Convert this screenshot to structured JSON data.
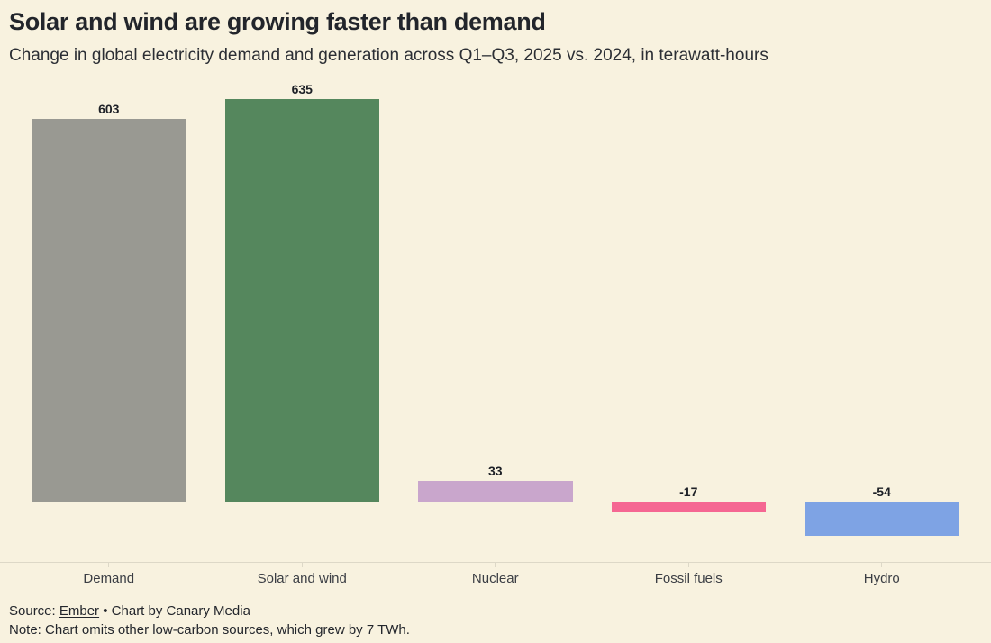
{
  "header": {
    "title": "Solar and wind are growing faster than demand",
    "subtitle": "Change in global electricity demand and generation across Q1–Q3, 2025 vs. 2024, in terawatt-hours"
  },
  "chart_data": {
    "type": "bar",
    "title": "Solar and wind are growing faster than demand",
    "subtitle": "Change in global electricity demand and generation across Q1–Q3, 2025 vs. 2024, in terawatt-hours",
    "unit": "TWh",
    "categories": [
      "Demand",
      "Solar and wind",
      "Nuclear",
      "Fossil fuels",
      "Hydro"
    ],
    "values": [
      603,
      635,
      33,
      -17,
      -54
    ],
    "value_labels": [
      "603",
      "635",
      "33",
      "-17",
      "-54"
    ],
    "bar_colors": [
      "#999992",
      "#55875d",
      "#c9a6cc",
      "#f56792",
      "#7ea3e4"
    ],
    "baseline_value": 0,
    "ylim": [
      -54,
      635
    ],
    "grid": false,
    "legend": false,
    "xlabel": "",
    "ylabel": ""
  },
  "footer": {
    "source_prefix": "Source:",
    "source_link_label": "Ember",
    "separator": "•",
    "credit": "Chart by Canary Media",
    "note": "Note: Chart omits other low-carbon sources, which grew by 7 TWh."
  },
  "colors": {
    "background": "#f8f2df",
    "title_text": "#22252b",
    "axis_line": "#ddd8c7"
  }
}
